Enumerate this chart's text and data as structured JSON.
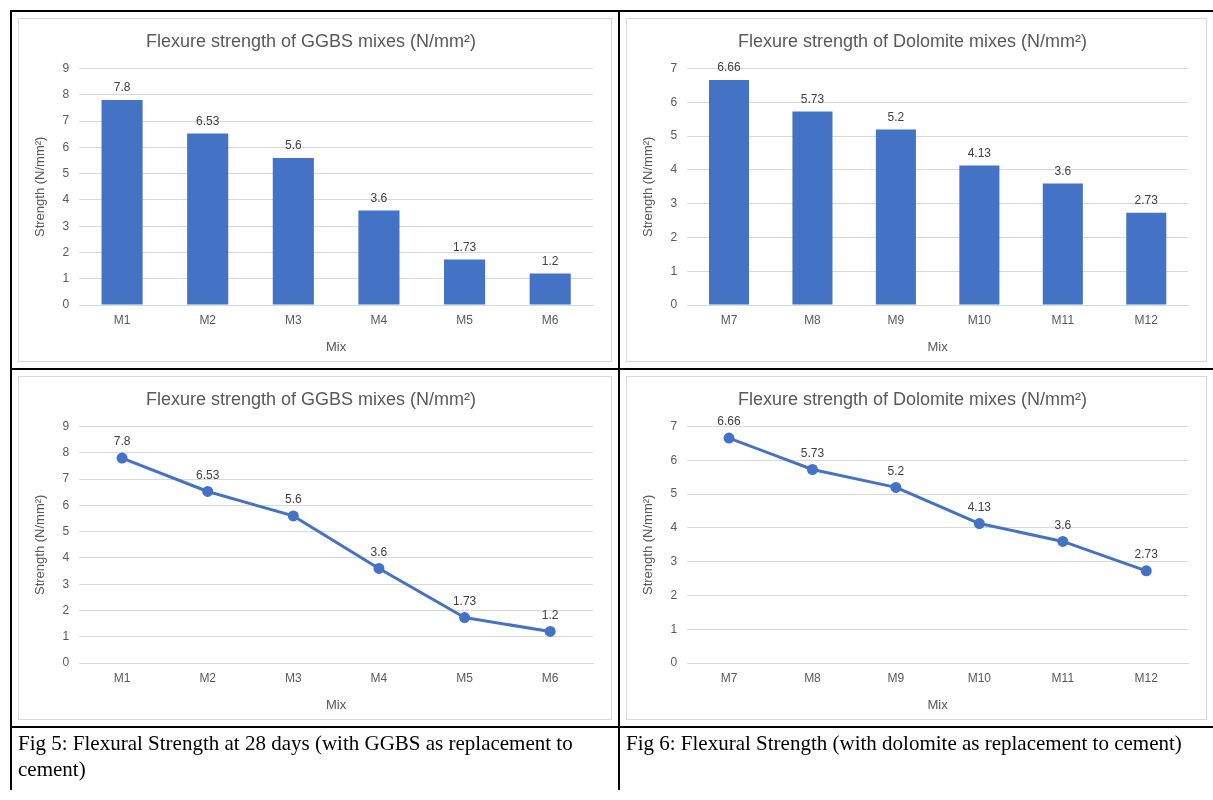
{
  "chart_data": [
    {
      "type": "bar",
      "title": "Flexure strength of GGBS mixes (N/mm²)",
      "xlabel": "Mix",
      "ylabel": "Strength (N/mm²)",
      "categories": [
        "M1",
        "M2",
        "M3",
        "M4",
        "M5",
        "M6"
      ],
      "values": [
        7.8,
        6.53,
        5.6,
        3.6,
        1.73,
        1.2
      ],
      "color": "#4472c4",
      "ylim": [
        0,
        9
      ],
      "yticks": [
        0,
        1,
        2,
        3,
        4,
        5,
        6,
        7,
        8,
        9
      ],
      "grid": "y",
      "data_labels": true,
      "legend": false
    },
    {
      "type": "bar",
      "title": "Flexure strength of Dolomite mixes (N/mm²)",
      "xlabel": "Mix",
      "ylabel": "Strength (N/mm²)",
      "categories": [
        "M7",
        "M8",
        "M9",
        "M10",
        "M11",
        "M12"
      ],
      "values": [
        6.66,
        5.73,
        5.2,
        4.13,
        3.6,
        2.73
      ],
      "color": "#4472c4",
      "ylim": [
        0,
        7
      ],
      "yticks": [
        0,
        1,
        2,
        3,
        4,
        5,
        6,
        7
      ],
      "grid": "y",
      "data_labels": true,
      "legend": false
    },
    {
      "type": "line",
      "title": "Flexure strength of GGBS mixes (N/mm²)",
      "xlabel": "Mix",
      "ylabel": "Strength (N/mm²)",
      "categories": [
        "M1",
        "M2",
        "M3",
        "M4",
        "M5",
        "M6"
      ],
      "values": [
        7.8,
        6.53,
        5.6,
        3.6,
        1.73,
        1.2
      ],
      "color": "#4472c4",
      "ylim": [
        0,
        9
      ],
      "yticks": [
        0,
        1,
        2,
        3,
        4,
        5,
        6,
        7,
        8,
        9
      ],
      "grid": "y",
      "data_labels": true,
      "legend": false,
      "marker": "circle",
      "annotations": [
        "Fig 5: Flexural Strength at 28 days (with GGBS as replacement to cement)"
      ]
    },
    {
      "type": "line",
      "title": "Flexure strength of Dolomite mixes (N/mm²)",
      "xlabel": "Mix",
      "ylabel": "Strength (N/mm²)",
      "categories": [
        "M7",
        "M8",
        "M9",
        "M10",
        "M11",
        "M12"
      ],
      "values": [
        6.66,
        5.73,
        5.2,
        4.13,
        3.6,
        2.73
      ],
      "color": "#4472c4",
      "ylim": [
        0,
        7
      ],
      "yticks": [
        0,
        1,
        2,
        3,
        4,
        5,
        6,
        7
      ],
      "grid": "y",
      "data_labels": true,
      "legend": false,
      "marker": "circle",
      "annotations": [
        "Fig 6: Flexural Strength (with dolomite as replacement to cement)"
      ]
    }
  ]
}
